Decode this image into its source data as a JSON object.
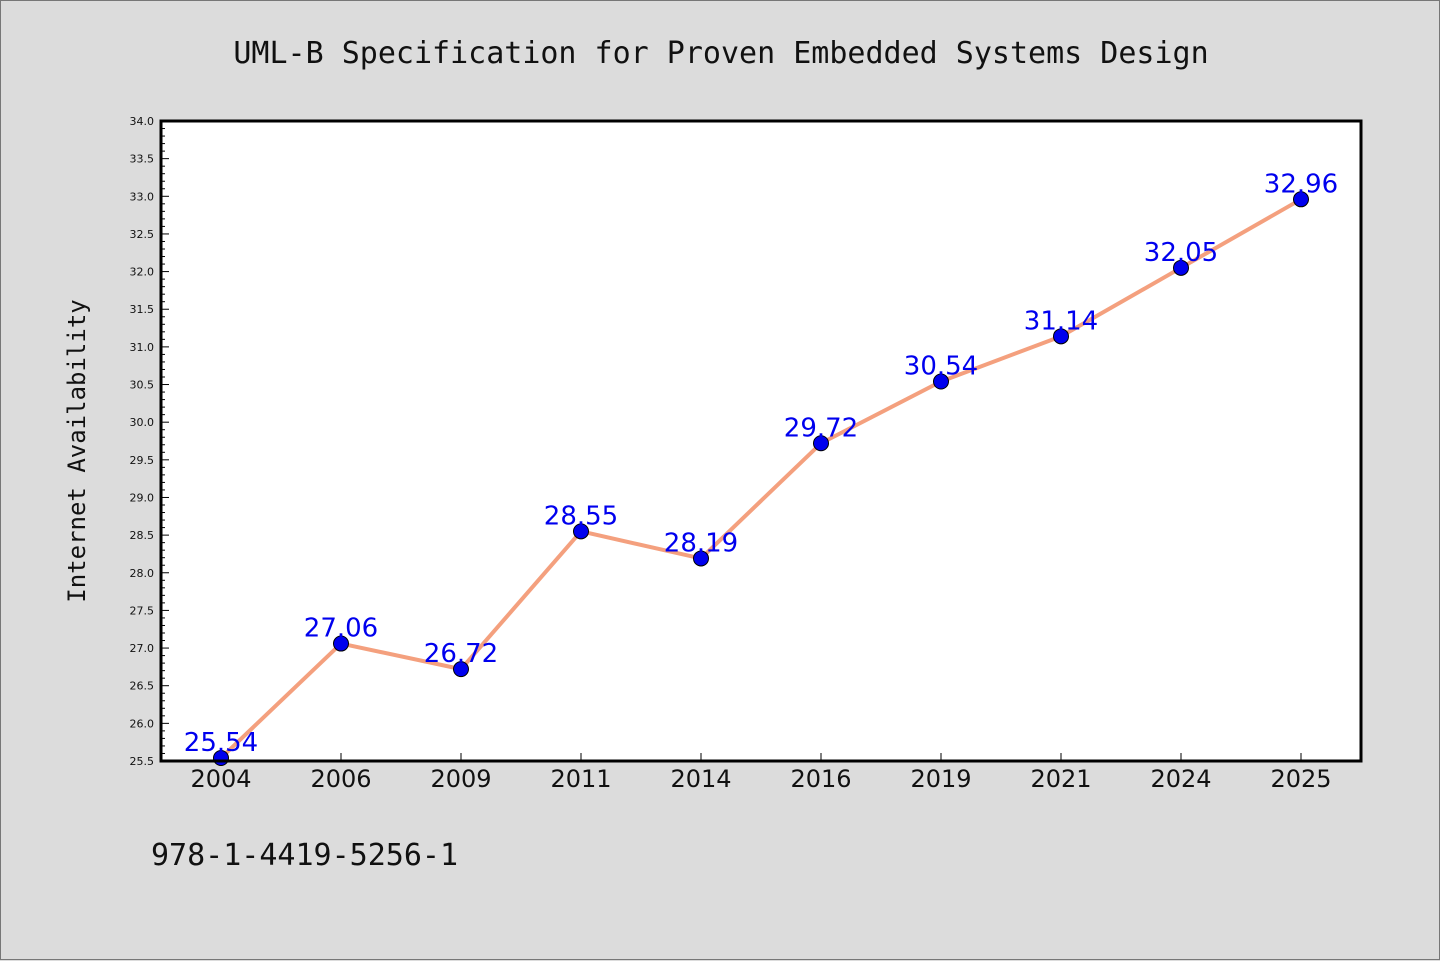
{
  "chart_data": {
    "type": "line",
    "title": "UML-B Specification for Proven Embedded Systems Design",
    "xlabel": "",
    "ylabel": "Internet Availability",
    "categories": [
      "2004",
      "2006",
      "2009",
      "2011",
      "2014",
      "2016",
      "2019",
      "2021",
      "2024",
      "2025"
    ],
    "series": [
      {
        "values": [
          25.54,
          27.06,
          26.72,
          28.55,
          28.19,
          29.72,
          30.54,
          31.14,
          32.05,
          32.96
        ],
        "data_labels": [
          "25.54",
          "27.06",
          "26.72",
          "28.55",
          "28.19",
          "29.72",
          "30.54",
          "31.14",
          "32.05",
          "32.96"
        ]
      }
    ],
    "y_ticks": [
      "25.5",
      "26.0",
      "26.5",
      "27.0",
      "27.5",
      "28.0",
      "28.5",
      "29.0",
      "29.5",
      "30.0",
      "30.5",
      "31.0",
      "31.5",
      "32.0",
      "32.5",
      "33.0",
      "33.5",
      "34.0"
    ],
    "ylim": [
      25.5,
      34.0
    ],
    "grid": false,
    "legend": "none",
    "colors": {
      "line": "#f4a07e",
      "marker": "#0000ee",
      "data_label": "#0000ee",
      "plot_background": "#ffffff",
      "figure_background": "#dcdcdc"
    }
  },
  "footnote": "978-1-4419-5256-1"
}
